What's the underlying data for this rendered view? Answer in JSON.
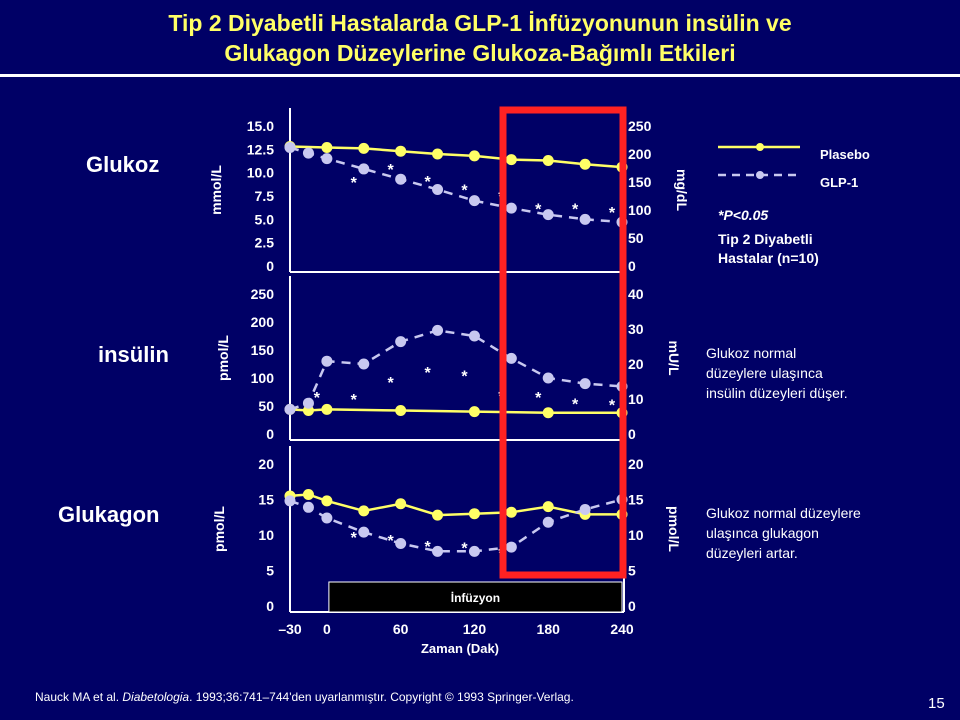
{
  "title_line1": "Tip 2 Diyabetli Hastalarda GLP-1 İnfüzyonunun insülin ve",
  "title_line2": "Glukagon Düzeylerine Glukoza-Bağımlı Etkileri",
  "colors": {
    "background": "#000066",
    "title": "#ffff66",
    "plasebo": "#ffff66",
    "glp1": "#c8c8f0",
    "highlight": "#ff2222"
  },
  "legend": {
    "plasebo": "Plasebo",
    "glp1": "GLP-1"
  },
  "note": {
    "p_value": "*P<0.05",
    "patients": "Tip 2 Diyabetli\nHastalar (n=10)"
  },
  "descriptions": {
    "insulin": "Glukoz normal\ndüzeylere ulaşınca\ninsülin düzeyleri düşer.",
    "glucagon": "Glukoz normal düzeylere\nulaşınca glukagon\ndüzeyleri artar."
  },
  "infusion_label": "İnfüzyon",
  "citation": {
    "authors": "Nauck MA et al. ",
    "journal": "Diabetologia",
    "rest": ". 1993;36:741–744'den  uyarlanmıştır. Copyright © 1993 Springer-Verlag."
  },
  "page_number": "15",
  "chart_data": [
    {
      "type": "line",
      "panel_label": "Glukoz",
      "ylabel": "mmol/L",
      "ylabel_right": "mg/dL",
      "xlabel": "",
      "ylim": [
        0,
        15
      ],
      "yticks": [
        "0",
        "2.5",
        "5.0",
        "7.5",
        "10.0",
        "12.5",
        "15.0"
      ],
      "yticks_right": [
        "0",
        "50",
        "100",
        "150",
        "200",
        "250"
      ],
      "x": [
        -30,
        -15,
        0,
        30,
        60,
        90,
        120,
        150,
        180,
        210,
        240
      ],
      "series": [
        {
          "name": "Plasebo",
          "x": [
            -30,
            0,
            30,
            60,
            90,
            120,
            150,
            180,
            210,
            240
          ],
          "values": [
            12.8,
            12.7,
            12.6,
            12.3,
            12.0,
            11.8,
            11.4,
            11.3,
            10.9,
            10.6
          ]
        },
        {
          "name": "GLP-1",
          "x": [
            -30,
            -15,
            0,
            30,
            60,
            90,
            120,
            150,
            180,
            210,
            240
          ],
          "values": [
            12.7,
            12.1,
            11.5,
            10.4,
            9.3,
            8.2,
            7.0,
            6.2,
            5.5,
            5.0,
            4.7
          ]
        }
      ],
      "significance_x": [
        30,
        60,
        90,
        120,
        150,
        180,
        210,
        240
      ],
      "significance_values": [
        9.2,
        10.6,
        9.3,
        8.4,
        7.7,
        6.4,
        6.4,
        6.0
      ]
    },
    {
      "type": "line",
      "panel_label": "insülin",
      "ylabel": "pmol/L",
      "ylabel_right": "mU/L",
      "xlabel": "",
      "ylim": [
        0,
        250
      ],
      "yticks": [
        "0",
        "50",
        "100",
        "150",
        "200",
        "250"
      ],
      "yticks_right": [
        "0",
        "10",
        "20",
        "30",
        "40"
      ],
      "x": [
        -30,
        -15,
        0,
        30,
        60,
        90,
        120,
        150,
        180,
        210,
        240
      ],
      "series": [
        {
          "name": "Plasebo",
          "x": [
            -30,
            -15,
            0,
            60,
            120,
            180,
            240
          ],
          "values": [
            44,
            42,
            44,
            42,
            40,
            38,
            38
          ]
        },
        {
          "name": "GLP-1",
          "x": [
            -30,
            -15,
            0,
            30,
            60,
            90,
            120,
            150,
            180,
            210,
            240
          ],
          "values": [
            44,
            55,
            130,
            125,
            165,
            185,
            175,
            135,
            100,
            90,
            85
          ]
        }
      ],
      "significance_x": [
        0,
        30,
        60,
        90,
        120,
        150,
        180,
        210,
        240
      ],
      "significance_values": [
        70,
        66,
        96,
        114,
        108,
        72,
        70,
        58,
        56
      ]
    },
    {
      "type": "line",
      "panel_label": "Glukagon",
      "ylabel": "pmol/L",
      "ylabel_right": "pmol/L",
      "xlabel": "Zaman (Dak)",
      "ylim": [
        0,
        20
      ],
      "yticks": [
        "0",
        "5",
        "10",
        "15",
        "20"
      ],
      "yticks_right": [
        "0",
        "5",
        "10",
        "15",
        "20"
      ],
      "xticks": [
        "–30",
        "0",
        "60",
        "120",
        "180",
        "240"
      ],
      "xtick_values": [
        -30,
        0,
        60,
        120,
        180,
        240
      ],
      "series": [
        {
          "name": "Plasebo",
          "x": [
            -30,
            -15,
            0,
            30,
            60,
            90,
            120,
            150,
            180,
            210,
            240
          ],
          "values": [
            15.5,
            15.7,
            14.8,
            13.4,
            14.4,
            12.8,
            13.0,
            13.2,
            14.0,
            12.9,
            12.9
          ]
        },
        {
          "name": "GLP-1",
          "x": [
            -30,
            -15,
            0,
            30,
            60,
            90,
            120,
            150,
            180,
            210,
            240
          ],
          "values": [
            14.8,
            13.9,
            12.4,
            10.4,
            8.8,
            7.7,
            7.7,
            8.3,
            11.8,
            13.6,
            15.0
          ]
        }
      ],
      "significance_x": [
        30,
        60,
        90,
        120,
        150
      ],
      "significance_values": [
        10.0,
        9.6,
        8.7,
        8.5,
        7.8
      ],
      "infusion_x": [
        0,
        240
      ]
    }
  ]
}
